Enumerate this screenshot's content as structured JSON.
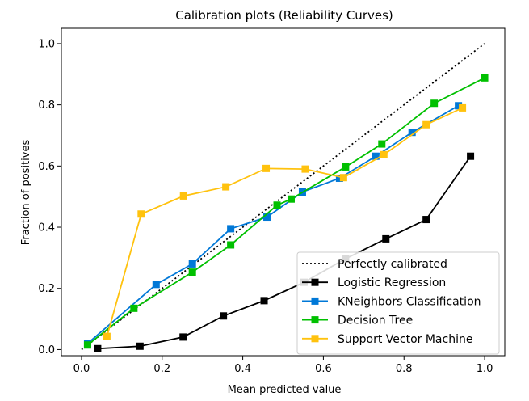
{
  "chart_data": {
    "type": "line",
    "title": "Calibration plots (Reliability Curves)",
    "xlabel": "Mean predicted value",
    "ylabel": "Fraction of positives",
    "xlim": [
      -0.05,
      1.05
    ],
    "ylim": [
      -0.02,
      1.05
    ],
    "xticks": [
      "0.0",
      "0.2",
      "0.4",
      "0.6",
      "0.8",
      "1.0"
    ],
    "yticks": [
      "0.0",
      "0.2",
      "0.4",
      "0.6",
      "0.8",
      "1.0"
    ],
    "grid": false,
    "legend_position": "lower-right",
    "series": [
      {
        "name": "Perfectly calibrated",
        "style": "dotted",
        "marker": "none",
        "color": "#000000",
        "x": [
          0.0,
          1.0
        ],
        "y": [
          0.0,
          1.0
        ]
      },
      {
        "name": "Logistic Regression",
        "style": "solid",
        "marker": "square",
        "color": "#000000",
        "x": [
          0.04,
          0.145,
          0.252,
          0.352,
          0.453,
          0.552,
          0.655,
          0.755,
          0.855,
          0.965
        ],
        "y": [
          0.003,
          0.011,
          0.041,
          0.11,
          0.16,
          0.22,
          0.297,
          0.362,
          0.425,
          0.632
        ]
      },
      {
        "name": "KNeighbors Classification",
        "style": "solid",
        "marker": "square",
        "color": "#0078d7",
        "x": [
          0.015,
          0.185,
          0.275,
          0.37,
          0.46,
          0.548,
          0.64,
          0.73,
          0.82,
          0.935
        ],
        "y": [
          0.02,
          0.213,
          0.28,
          0.395,
          0.433,
          0.515,
          0.56,
          0.632,
          0.71,
          0.797
        ]
      },
      {
        "name": "Decision Tree",
        "style": "solid",
        "marker": "square",
        "color": "#00c000",
        "x": [
          0.015,
          0.13,
          0.275,
          0.37,
          0.485,
          0.52,
          0.655,
          0.745,
          0.875,
          1.0
        ],
        "y": [
          0.015,
          0.135,
          0.253,
          0.342,
          0.472,
          0.492,
          0.597,
          0.672,
          0.805,
          0.888
        ]
      },
      {
        "name": "Support Vector Machine",
        "style": "solid",
        "marker": "square",
        "color": "#ffc20e",
        "x": [
          0.063,
          0.148,
          0.253,
          0.358,
          0.458,
          0.555,
          0.65,
          0.75,
          0.855,
          0.945
        ],
        "y": [
          0.043,
          0.443,
          0.502,
          0.532,
          0.592,
          0.59,
          0.562,
          0.637,
          0.735,
          0.79
        ]
      }
    ]
  }
}
